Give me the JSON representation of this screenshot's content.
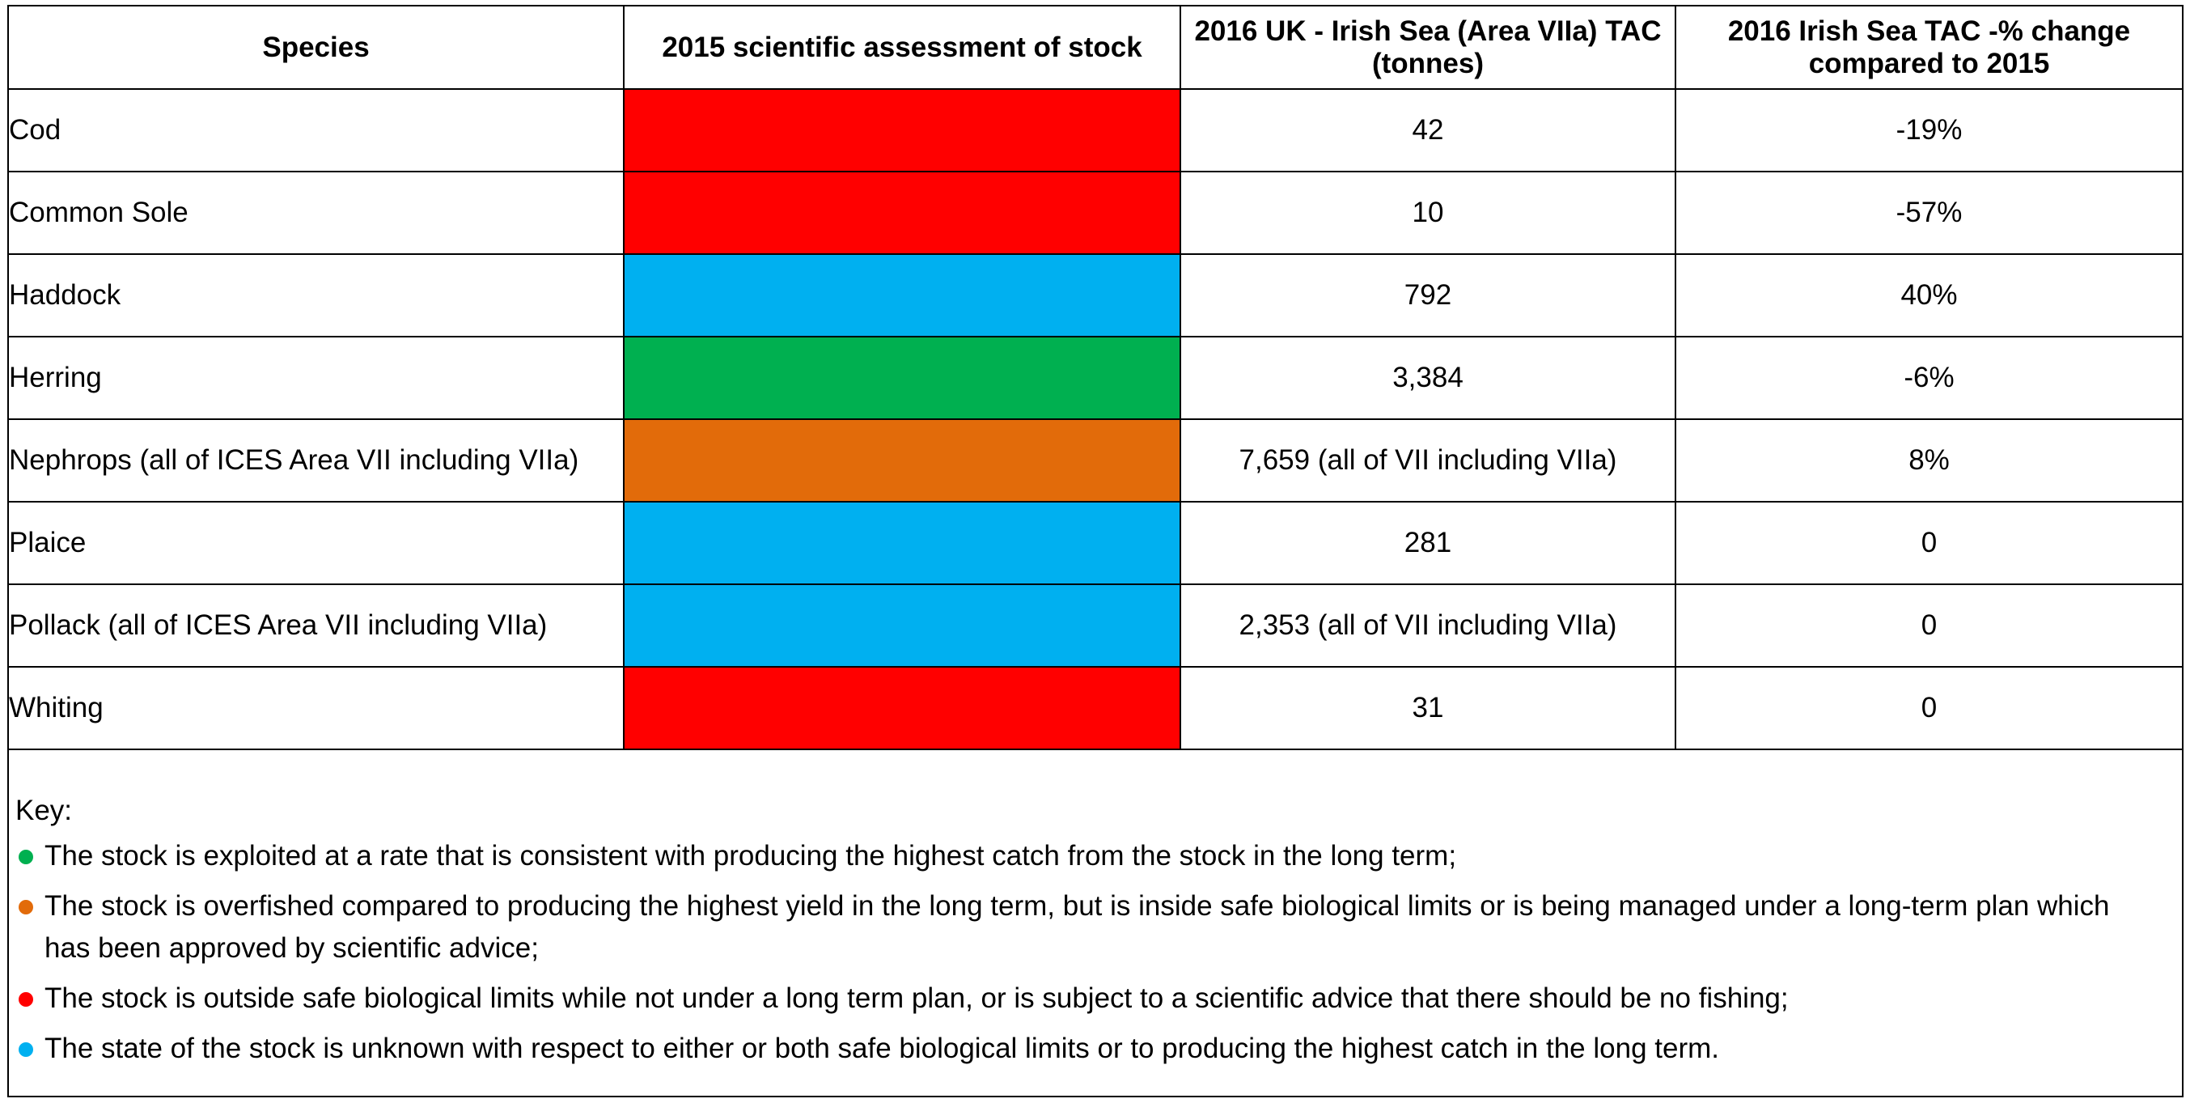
{
  "table": {
    "headers": {
      "species": "Species",
      "assessment": "2015 scientific assessment of stock",
      "tac": "2016 UK - Irish Sea (Area VIIa) TAC (tonnes)",
      "change": "2016 Irish Sea TAC -% change compared to 2015"
    },
    "rows": [
      {
        "species": "Cod",
        "status": "red",
        "tac": "42",
        "change": "-19%"
      },
      {
        "species": "Common Sole",
        "status": "red",
        "tac": "10",
        "change": "-57%"
      },
      {
        "species": "Haddock",
        "status": "blue",
        "tac": "792",
        "change": "40%"
      },
      {
        "species": "Herring",
        "status": "green",
        "tac": "3,384",
        "change": "-6%"
      },
      {
        "species": "Nephrops (all of ICES Area VII including VIIa)",
        "status": "orange",
        "tac": "7,659 (all of VII including VIIa)",
        "change": "8%"
      },
      {
        "species": "Plaice",
        "status": "blue",
        "tac": "281",
        "change": "0"
      },
      {
        "species": "Pollack (all of ICES Area VII including VIIa)",
        "status": "blue",
        "tac": "2,353 (all of VII including VIIa)",
        "change": "0"
      },
      {
        "species": "Whiting",
        "status": "red",
        "tac": "31",
        "change": "0"
      }
    ]
  },
  "status_colors": {
    "red": "#ff0000",
    "blue": "#00b0f0",
    "green": "#00b050",
    "orange": "#e26b0a"
  },
  "key": {
    "title": "Key:",
    "items": [
      {
        "status": "green",
        "text": "The stock is exploited at a rate that is consistent with producing the highest catch from the stock in the long term;"
      },
      {
        "status": "orange",
        "text": "The stock is overfished compared to producing the highest yield in the long term, but is inside safe biological limits or is being managed under a long-term plan which has been approved by scientific advice;"
      },
      {
        "status": "red",
        "text": "The stock is outside safe biological limits while not under a long term plan, or is subject to a scientific advice that there should be no fishing;"
      },
      {
        "status": "blue",
        "text": "The state of the stock is unknown with respect to either or both safe biological limits or to producing the highest catch in the long term."
      }
    ]
  }
}
